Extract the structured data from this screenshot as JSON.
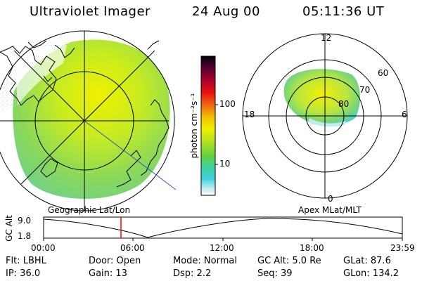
{
  "header": {
    "title": "Ultraviolet Imager",
    "date": "24 Aug 00",
    "time": "05:11:36 UT"
  },
  "colorbar": {
    "unit_label": "photon cm⁻²s⁻¹",
    "tick_100": "100",
    "tick_10": "10"
  },
  "polar_plot": {
    "mlt_12": "12",
    "mlt_18": "18",
    "mlt_6": "6",
    "mlt_0": "0",
    "lat_60": "60",
    "lat_70": "70",
    "lat_80": "80"
  },
  "orbit_panel": {
    "geo_label": "Geographic Lat/Lon",
    "apex_label": "Apex MLat/MLT",
    "y_label": "GC Alt",
    "y_top": "9.0",
    "y_bottom": "1.8",
    "x_ticks": [
      "00:00",
      "06:00",
      "12:00",
      "18:00",
      "23:59"
    ]
  },
  "info": {
    "flt": "Flt: LBHL",
    "door": "Door: Open",
    "mode": "Mode: Normal",
    "gcalt": "GC Alt: 5.0 Re",
    "glat": "GLat:  87.6",
    "ip": "IP: 36.0",
    "gain": "Gain: 13",
    "dsp": "Dsp:    2.2",
    "seq": "Seq: 39",
    "glon": "GLon: 134.2"
  },
  "colors": {
    "marker": "#ff0000",
    "diag_line": "#3355cc"
  }
}
